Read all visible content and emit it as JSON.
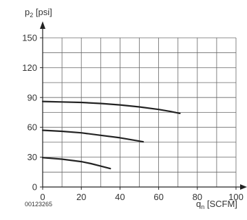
{
  "chart_data": {
    "type": "line",
    "title": "",
    "ylabel": "p2 [psi]",
    "ylabel_main": "p",
    "ylabel_sub": "2",
    "ylabel_unit": " [psi]",
    "xlabel": "qn [SCFM]",
    "xlabel_main": "q",
    "xlabel_sub": "n",
    "xlabel_unit": " [SCFM]",
    "xlim": [
      0,
      100
    ],
    "ylim": [
      0,
      150
    ],
    "x_ticks": [
      0,
      20,
      40,
      60,
      80,
      100
    ],
    "y_ticks": [
      0,
      30,
      60,
      90,
      120,
      150
    ],
    "grid": true,
    "grid_x_step": 10,
    "grid_y_step": 15,
    "series": [
      {
        "x": [
          0,
          10,
          20,
          30,
          40,
          50,
          60,
          66,
          71
        ],
        "y": [
          86,
          85.5,
          85,
          84,
          82.5,
          80.5,
          78,
          76,
          74
        ]
      },
      {
        "x": [
          0,
          10,
          20,
          30,
          40,
          46,
          52
        ],
        "y": [
          57,
          56,
          54.5,
          52,
          49.5,
          47.5,
          45.5
        ]
      },
      {
        "x": [
          0,
          10,
          20,
          25,
          30,
          35
        ],
        "y": [
          29.5,
          28,
          25.5,
          23.5,
          21,
          18.5
        ]
      }
    ],
    "annotations": [
      "00123265"
    ],
    "colors": {
      "grid": "#666666",
      "line": "#222222",
      "axis": "#222222",
      "text": "#333333"
    }
  }
}
